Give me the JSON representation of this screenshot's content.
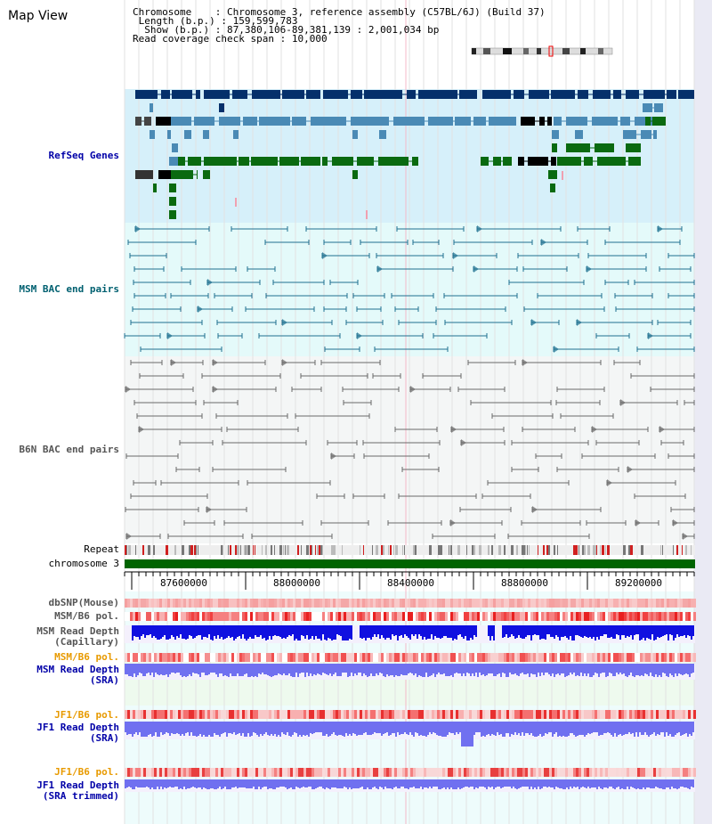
{
  "header": {
    "title": "Map View",
    "chromosome_label": "Chromosome",
    "chromosome_value": "Chromosome 3, reference assembly (C57BL/6J) (Build 37)",
    "length_label": "Length (b.p.)",
    "length_value": "159,599,783",
    "show_label": "Show (b.p.)",
    "show_value": "87,380,106-89,381,139 : 2,001,034 bp",
    "coverage_label": "Read coverage check span",
    "coverage_value": "10,000"
  },
  "tracks": {
    "refseq": "RefSeq Genes",
    "msm_bac": "MSM BAC end pairs",
    "b6n_bac": "B6N BAC end pairs",
    "repeat": "Repeat",
    "chromosome": "chromosome 3",
    "dbsnp": "dbSNP(Mouse)",
    "msm_b6_pol": "MSM/B6 pol.",
    "msm_depth_cap_1": "MSM Read Depth",
    "msm_depth_cap_2": "(Capillary)",
    "msm_b6_pol2": "MSM/B6 pol.",
    "msm_depth_sra_1": "MSM Read Depth",
    "msm_depth_sra_2": "(SRA)",
    "jf1_b6_pol": "JF1/B6 pol.",
    "jf1_depth_sra_1": "JF1 Read Depth",
    "jf1_depth_sra_2": "(SRA)",
    "jf1_b6_pol2": "JF1/B6 pol.",
    "jf1_depth_trim_1": "JF1 Read Depth",
    "jf1_depth_trim_2": "(SRA trimmed)"
  },
  "axis_ticks": [
    "87600000",
    "88000000",
    "88400000",
    "88800000",
    "89200000"
  ],
  "colors": {
    "refseq_bg": "#d6f0fa",
    "msm_bg": "#e4fafa",
    "b6n_bg": "#f4f6f6",
    "gene_dark": "#05306b",
    "gene_mid": "#4a8ab5",
    "gene_green": "#0a6a10",
    "chromosome": "#006400",
    "depth_blue": "#1010e0",
    "depth_light": "#7070f0",
    "pol_red": "#f04040"
  }
}
